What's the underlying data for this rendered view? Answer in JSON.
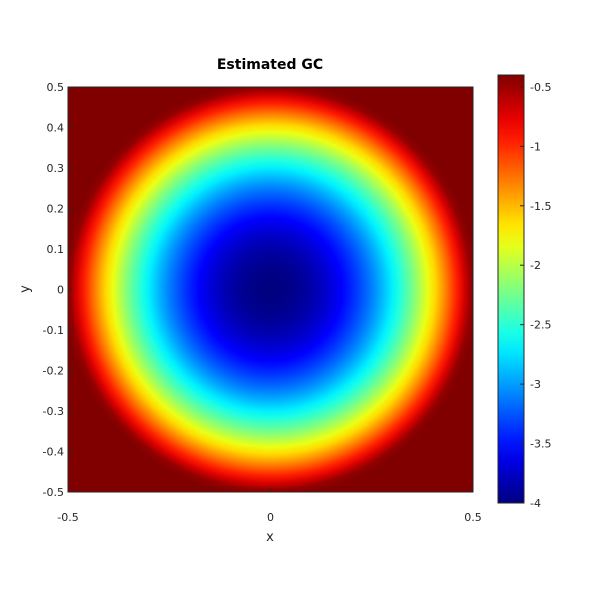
{
  "chart_data": {
    "type": "heatmap",
    "title": "Estimated GC",
    "xlabel": "x",
    "ylabel": "y",
    "xlim": [
      -0.5,
      0.5
    ],
    "ylim": [
      -0.5,
      0.5
    ],
    "x_ticks": [
      "-0.5",
      "0",
      "0.5"
    ],
    "y_ticks": [
      "0.5",
      "0.4",
      "0.3",
      "0.2",
      "0.1",
      "0",
      "-0.1",
      "-0.2",
      "-0.3",
      "-0.4",
      "-0.5"
    ],
    "y_tick_values": [
      0.5,
      0.4,
      0.3,
      0.2,
      0.1,
      0,
      -0.1,
      -0.2,
      -0.3,
      -0.4,
      -0.5
    ],
    "colorbar": {
      "colormap": "jet",
      "clim": [
        -4.0,
        -0.4
      ],
      "ticks": [
        "-0.5",
        "-1",
        "-1.5",
        "-2",
        "-2.5",
        "-3",
        "-3.5",
        "-4"
      ],
      "tick_values": [
        -0.5,
        -1,
        -1.5,
        -2,
        -2.5,
        -3,
        -3.5,
        -4
      ]
    },
    "field": {
      "description_formula": "value = -4 + (r/0.5)^2 * 3.6 clipped to clim, where r = sqrt(x^2 + y^2)",
      "center_value": -4.0,
      "edge_value_at_r_0.5": -0.4,
      "grid_on": false
    }
  }
}
